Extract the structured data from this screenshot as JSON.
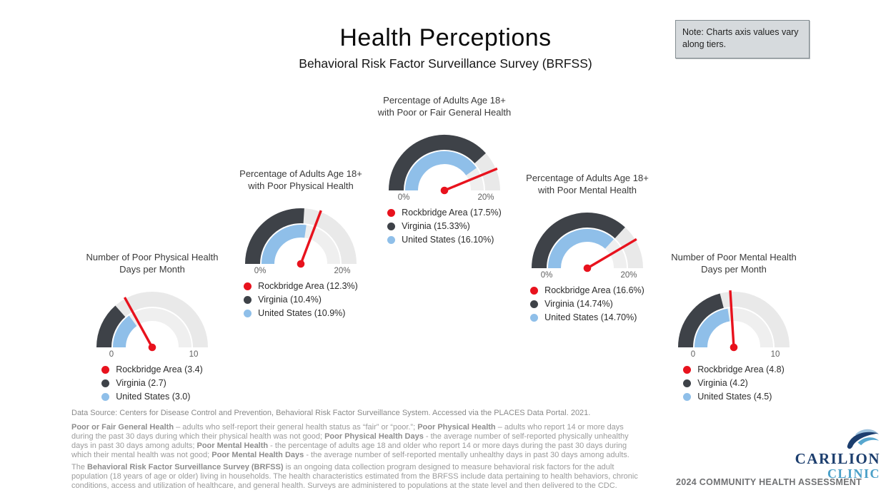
{
  "header": {
    "title": "Health Perceptions",
    "subtitle": "Behavioral Risk Factor Surveillance Survey (BRFSS)"
  },
  "note": {
    "text": "Note:  Charts axis values vary along tiers."
  },
  "colors": {
    "needle_red": "#e8121d",
    "dark_gray": "#3e4248",
    "light_blue": "#8fbfe9",
    "track_outer": "#e9e9e9",
    "track_inner": "#efefef"
  },
  "chart_data": [
    {
      "type": "gauge",
      "title_lines": [
        "Number of Poor Physical Health",
        "Days per Month"
      ],
      "axis": {
        "min": 0,
        "max": 10,
        "min_label": "0",
        "max_label": "10"
      },
      "series": [
        {
          "name": "Rockbridge Area",
          "value": 3.4,
          "label": "Rockbridge Area (3.4)",
          "color": "#e8121d",
          "role": "needle"
        },
        {
          "name": "Virginia",
          "value": 2.7,
          "label": "Virginia (2.7)",
          "color": "#3e4248",
          "role": "outer_arc"
        },
        {
          "name": "United States",
          "value": 3.0,
          "label": "United States (3.0)",
          "color": "#8fbfe9",
          "role": "inner_arc"
        }
      ]
    },
    {
      "type": "gauge",
      "title_lines": [
        "Percentage of Adults Age 18+",
        "with Poor Physical Health"
      ],
      "axis": {
        "min": 0,
        "max": 20,
        "min_label": "0%",
        "max_label": "20%"
      },
      "series": [
        {
          "name": "Rockbridge Area",
          "value": 12.3,
          "label": "Rockbridge Area (12.3%)",
          "color": "#e8121d",
          "role": "needle"
        },
        {
          "name": "Virginia",
          "value": 10.4,
          "label": "Virginia (10.4%)",
          "color": "#3e4248",
          "role": "outer_arc"
        },
        {
          "name": "United States",
          "value": 10.9,
          "label": "United States (10.9%)",
          "color": "#8fbfe9",
          "role": "inner_arc"
        }
      ]
    },
    {
      "type": "gauge",
      "title_lines": [
        "Percentage of Adults Age 18+",
        "with Poor or Fair General Health"
      ],
      "axis": {
        "min": 0,
        "max": 20,
        "min_label": "0%",
        "max_label": "20%"
      },
      "series": [
        {
          "name": "Rockbridge Area",
          "value": 17.5,
          "label": "Rockbridge Area (17.5%)",
          "color": "#e8121d",
          "role": "needle"
        },
        {
          "name": "Virginia",
          "value": 15.33,
          "label": "Virginia (15.33%)",
          "color": "#3e4248",
          "role": "outer_arc"
        },
        {
          "name": "United States",
          "value": 16.1,
          "label": "United States (16.10%)",
          "color": "#8fbfe9",
          "role": "inner_arc"
        }
      ]
    },
    {
      "type": "gauge",
      "title_lines": [
        "Percentage of Adults Age 18+",
        "with Poor Mental Health"
      ],
      "axis": {
        "min": 0,
        "max": 20,
        "min_label": "0%",
        "max_label": "20%"
      },
      "series": [
        {
          "name": "Rockbridge Area",
          "value": 16.6,
          "label": "Rockbridge Area (16.6%)",
          "color": "#e8121d",
          "role": "needle"
        },
        {
          "name": "Virginia",
          "value": 14.74,
          "label": "Virginia (14.74%)",
          "color": "#3e4248",
          "role": "outer_arc"
        },
        {
          "name": "United States",
          "value": 14.7,
          "label": "United States (14.70%)",
          "color": "#8fbfe9",
          "role": "inner_arc"
        }
      ]
    },
    {
      "type": "gauge",
      "title_lines": [
        "Number of Poor Mental Health",
        "Days per Month"
      ],
      "axis": {
        "min": 0,
        "max": 10,
        "min_label": "0",
        "max_label": "10"
      },
      "series": [
        {
          "name": "Rockbridge Area",
          "value": 4.8,
          "label": "Rockbridge Area (4.8)",
          "color": "#e8121d",
          "role": "needle"
        },
        {
          "name": "Virginia",
          "value": 4.2,
          "label": "Virginia (4.2)",
          "color": "#3e4248",
          "role": "outer_arc"
        },
        {
          "name": "United States",
          "value": 4.5,
          "label": "United States (4.5)",
          "color": "#8fbfe9",
          "role": "inner_arc"
        }
      ]
    }
  ],
  "footer": {
    "source": "Data Source: Centers for Disease Control and Prevention, Behavioral Risk Factor Surveillance System. Accessed via the PLACES Data Portal. 2021.",
    "definitions": [
      {
        "text": "Poor or Fair General Health",
        "bold": true
      },
      {
        "text": " – adults who self-report their general health status as “fair” or “poor.”; ",
        "bold": false
      },
      {
        "text": "Poor Physical Health",
        "bold": true
      },
      {
        "text": " – adults who report 14 or more days during the past 30 days during which their physical health was not good; ",
        "bold": false
      },
      {
        "text": "Poor Physical Health Days",
        "bold": true
      },
      {
        "text": " - the average number of self-reported physically unhealthy days in past 30 days among adults; ",
        "bold": false
      },
      {
        "text": "Poor Mental Health",
        "bold": true
      },
      {
        "text": " - the percentage of adults age 18 and older who report 14 or more days during the past 30 days during which their mental health was not good; ",
        "bold": false
      },
      {
        "text": "Poor Mental Health Days",
        "bold": true
      },
      {
        "text": " - the average number of self-reported mentally unhealthy days in past 30 days among adults.",
        "bold": false
      }
    ],
    "about": [
      {
        "text": "The ",
        "bold": false
      },
      {
        "text": "Behavioral Risk Factor Surveillance Survey (BRFSS)",
        "bold": true
      },
      {
        "text": " is an ongoing data collection program designed to measure behavioral risk factors for the adult population (18 years of age or older) living in households. The health characteristics estimated from the BRFSS include data pertaining to health behaviors, chronic conditions, access and utilization of healthcare, and general health. Surveys are administered to populations at the state level and then delivered to the CDC.",
        "bold": false
      }
    ],
    "logo": {
      "line1": "CARILION",
      "line2": "CLINIC"
    },
    "assessment": "2024 COMMUNITY HEALTH ASSESSMENT"
  }
}
